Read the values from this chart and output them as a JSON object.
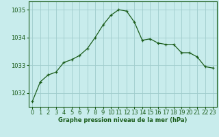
{
  "x": [
    0,
    1,
    2,
    3,
    4,
    5,
    6,
    7,
    8,
    9,
    10,
    11,
    12,
    13,
    14,
    15,
    16,
    17,
    18,
    19,
    20,
    21,
    22,
    23
  ],
  "y": [
    1031.7,
    1032.4,
    1032.65,
    1032.75,
    1033.1,
    1033.2,
    1033.35,
    1033.6,
    1034.0,
    1034.45,
    1034.8,
    1035.0,
    1034.95,
    1034.55,
    1033.9,
    1033.95,
    1033.8,
    1033.75,
    1033.75,
    1033.45,
    1033.45,
    1033.3,
    1032.95,
    1032.9
  ],
  "line_color": "#1a5c1a",
  "marker_color": "#1a5c1a",
  "bg_color": "#c8ecec",
  "grid_color": "#a0cccc",
  "xlabel": "Graphe pression niveau de la mer (hPa)",
  "xlabel_color": "#1a5c1a",
  "tick_color": "#1a5c1a",
  "ylim": [
    1031.5,
    1035.3
  ],
  "yticks": [
    1032,
    1033,
    1034,
    1035
  ],
  "xticks": [
    0,
    1,
    2,
    3,
    4,
    5,
    6,
    7,
    8,
    9,
    10,
    11,
    12,
    13,
    14,
    15,
    16,
    17,
    18,
    19,
    20,
    21,
    22,
    23
  ],
  "xtick_labels": [
    "0",
    "1",
    "2",
    "3",
    "4",
    "5",
    "6",
    "7",
    "8",
    "9",
    "10",
    "11",
    "12",
    "13",
    "14",
    "15",
    "16",
    "17",
    "18",
    "19",
    "20",
    "21",
    "22",
    "23"
  ],
  "figsize": [
    3.2,
    2.0
  ],
  "dpi": 100
}
